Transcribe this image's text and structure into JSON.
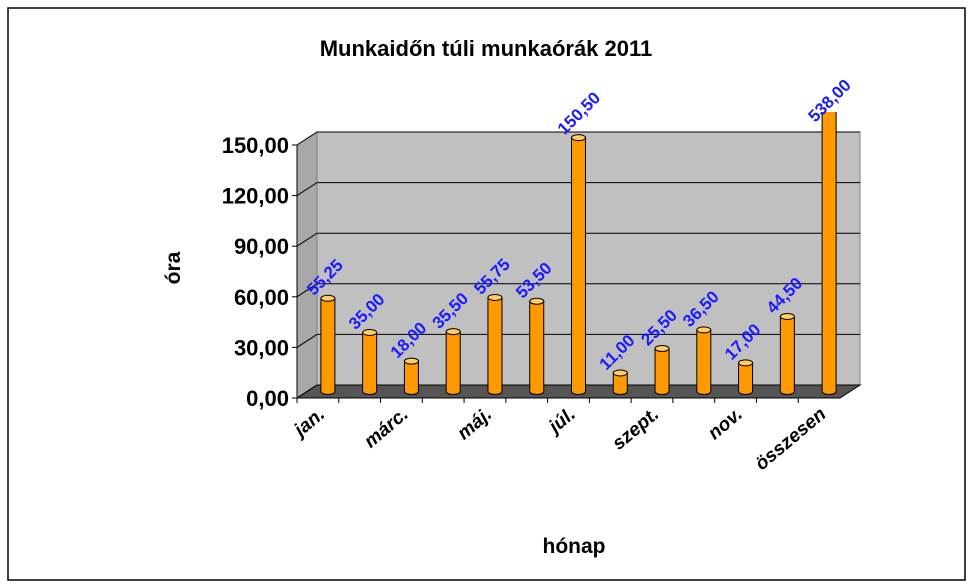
{
  "chart_data": {
    "type": "bar",
    "title": "Munkaidőn túli munkaórák 2011",
    "x_label": "hónap",
    "y_label": "óra",
    "categories": [
      "jan.",
      null,
      "márc.",
      null,
      "máj.",
      null,
      "júl.",
      null,
      "szept.",
      null,
      "nov.",
      null,
      "összesen"
    ],
    "values": [
      55.25,
      35,
      18,
      35.5,
      55.75,
      53.5,
      150.5,
      11,
      25.5,
      36.5,
      17,
      44.5,
      538
    ],
    "value_labels": [
      "55,25",
      "35,00",
      "18,00",
      "35,50",
      "55,75",
      "53,50",
      "150,50",
      "11,00",
      "25,50",
      "36,50",
      "17,00",
      "44,50",
      "538,00"
    ],
    "color": "#ff9900",
    "label_color": "#1a1aff",
    "ylim": [
      0,
      150
    ],
    "yticks": [
      {
        "value": 0,
        "label": "0,00"
      },
      {
        "value": 30,
        "label": "30,00"
      },
      {
        "value": 60,
        "label": "60,00"
      },
      {
        "value": 90,
        "label": "90,00"
      },
      {
        "value": 120,
        "label": "120,00"
      },
      {
        "value": 150,
        "label": "150,00"
      }
    ],
    "grid": true
  }
}
